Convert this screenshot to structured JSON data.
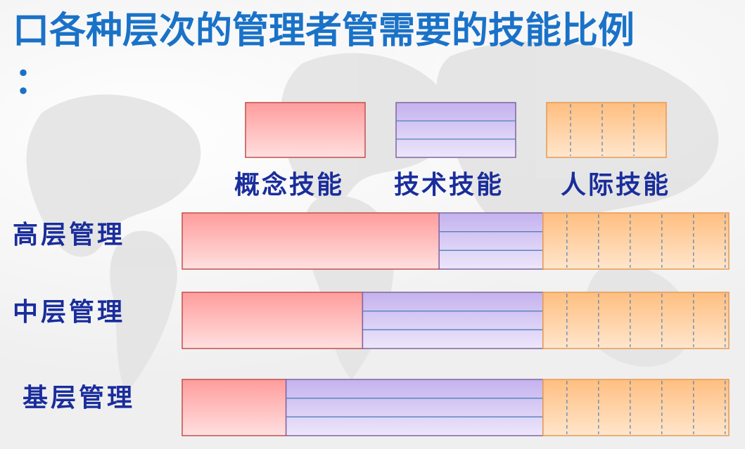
{
  "title": "口各种层次的管理者管需要的技能比例",
  "title_suffix": "：",
  "colors": {
    "title": "#1a72c8",
    "label": "#1a2d9c",
    "conceptual": "#ff9a9a",
    "technical": "#c8b8f0",
    "interpersonal": "#ffc48a"
  },
  "chart_data": {
    "type": "bar",
    "orientation": "horizontal",
    "stacked": true,
    "categories": [
      "高层管理",
      "中层管理",
      "基层管理"
    ],
    "series": [
      {
        "name": "概念技能",
        "values": [
          47,
          33,
          19
        ],
        "pattern": "solid",
        "color": "#ff9a9a"
      },
      {
        "name": "技术技能",
        "values": [
          19,
          33,
          47
        ],
        "pattern": "horizontal-lines",
        "color": "#c8b8f0"
      },
      {
        "name": "人际技能",
        "values": [
          34,
          34,
          34
        ],
        "pattern": "vertical-dashes",
        "color": "#ffc48a"
      }
    ],
    "legend_position": "top",
    "xlim": [
      0,
      100
    ],
    "title": "",
    "xlabel": "",
    "ylabel": ""
  }
}
